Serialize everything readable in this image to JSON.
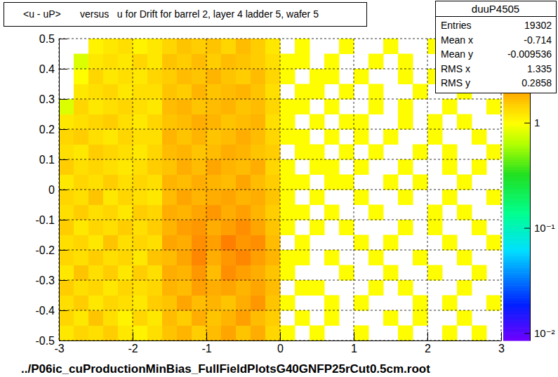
{
  "chart_data": {
    "type": "heatmap",
    "title": "<u - uP>       versus   u for Drift for barrel 2, layer 4 ladder 5, wafer 5",
    "annotations": [
      "../P06ic_cuProductionMinBias_FullFieldPlotsG40GNFP25rCut0.5cm.root"
    ],
    "stats": {
      "name": "duuP4505",
      "rows": [
        {
          "label": "Entries",
          "value": 19302
        },
        {
          "label": "Mean x",
          "value": -0.714
        },
        {
          "label": "Mean y",
          "value": -0.009536
        },
        {
          "label": "RMS x",
          "value": 1.335
        },
        {
          "label": "RMS y",
          "value": 0.2858
        }
      ]
    },
    "xlim": [
      -3,
      3
    ],
    "ylim": [
      -0.5,
      0.5
    ],
    "xticks": [
      -3,
      -2,
      -1,
      0,
      1,
      2,
      3
    ],
    "yticks": [
      -0.5,
      -0.4,
      -0.3,
      -0.2,
      -0.1,
      0,
      0.1,
      0.2,
      0.3,
      0.4,
      0.5
    ],
    "grid": true,
    "colorbar": {
      "range": [
        0.0085,
        6.3
      ],
      "log": true,
      "ticks": [
        {
          "value": 0.01,
          "label": "10⁻²"
        },
        {
          "value": 0.1,
          "label": "10⁻¹"
        },
        1
      ]
    },
    "x_bins": [
      -3,
      -2.8,
      -2.6,
      -2.4,
      -2.2,
      -2,
      -1.8,
      -1.6,
      -1.4,
      -1.2,
      -1,
      -0.8,
      -0.6,
      -0.4,
      -0.2,
      0,
      0.2,
      0.4,
      0.6,
      0.8,
      1,
      1.2,
      1.4,
      1.6,
      1.8,
      2,
      2.2,
      2.4,
      2.6,
      2.8,
      3
    ],
    "y_bins": [
      -0.5,
      -0.45,
      -0.4,
      -0.35,
      -0.3,
      -0.25,
      -0.2,
      -0.15,
      -0.1,
      -0.05,
      0,
      0.05,
      0.1,
      0.15,
      0.2,
      0.25,
      0.3,
      0.35,
      0.4,
      0.45,
      0.5
    ],
    "z": [
      [
        1.2,
        1.4,
        1.3,
        1.5,
        1.2,
        1.1,
        1.3,
        1.6,
        1.8,
        1.5,
        1.7,
        2.0,
        1.6,
        1.9,
        1.4,
        1,
        0,
        1,
        0,
        0,
        1,
        0,
        0,
        1,
        0,
        0,
        1,
        0,
        1,
        0
      ],
      [
        1.4,
        1.2,
        1.6,
        1.3,
        1.1,
        1.4,
        1.2,
        1.7,
        1.5,
        1.9,
        1.6,
        1.8,
        2.1,
        1.7,
        1.5,
        0,
        1,
        0,
        1,
        0,
        0,
        0,
        1,
        0,
        1,
        0,
        0,
        1,
        0,
        0
      ],
      [
        1.3,
        1.5,
        1.2,
        1.4,
        1.3,
        1.2,
        1.5,
        1.6,
        2.0,
        1.7,
        1.8,
        1.6,
        1.9,
        2.2,
        1.6,
        1,
        0,
        0,
        1,
        0,
        1,
        0,
        0,
        0,
        1,
        0,
        1,
        0,
        0,
        1
      ],
      [
        1.5,
        1.3,
        1.4,
        1.2,
        1.4,
        1.3,
        1.4,
        1.8,
        1.7,
        2.1,
        1.9,
        2.0,
        1.8,
        2.0,
        1.7,
        0,
        1,
        1,
        0,
        0,
        0,
        1,
        0,
        1,
        0,
        0,
        0,
        1,
        0,
        0
      ],
      [
        1.2,
        1.6,
        1.3,
        1.5,
        1.2,
        1.5,
        1.3,
        1.9,
        1.8,
        2.2,
        1.7,
        2.3,
        2.1,
        1.9,
        1.6,
        1,
        0,
        0,
        0,
        1,
        0,
        0,
        1,
        0,
        0,
        1,
        0,
        0,
        1,
        0
      ],
      [
        1.4,
        1.3,
        1.5,
        1.3,
        1.4,
        1.2,
        1.6,
        1.7,
        2.0,
        2.4,
        1.9,
        2.2,
        2.4,
        2.1,
        1.8,
        1,
        1,
        0,
        1,
        0,
        0,
        1,
        0,
        0,
        1,
        0,
        0,
        1,
        0,
        0
      ],
      [
        1.3,
        1.4,
        1.2,
        1.6,
        1.3,
        1.4,
        1.3,
        2.0,
        1.9,
        2.3,
        2.1,
        2.5,
        2.2,
        2.3,
        1.7,
        0,
        1,
        0,
        0,
        0,
        1,
        0,
        1,
        0,
        0,
        0,
        1,
        0,
        0,
        1
      ],
      [
        1.5,
        1.2,
        1.4,
        1.3,
        1.5,
        1.3,
        1.5,
        1.8,
        2.1,
        2.2,
        1.9,
        2.1,
        2.3,
        2.0,
        1.6,
        1,
        0,
        1,
        0,
        1,
        0,
        0,
        0,
        1,
        0,
        1,
        0,
        0,
        1,
        0
      ],
      [
        1.3,
        1.5,
        1.3,
        1.4,
        1.2,
        1.5,
        1.4,
        1.9,
        1.8,
        2.0,
        2.2,
        1.9,
        2.1,
        1.8,
        1.5,
        1,
        1,
        0,
        1,
        0,
        0,
        1,
        0,
        0,
        0,
        1,
        0,
        1,
        0,
        0
      ],
      [
        1.4,
        1.3,
        1.6,
        1.2,
        1.4,
        1.3,
        1.2,
        1.7,
        2.0,
        1.8,
        1.9,
        2.0,
        1.8,
        1.9,
        1.6,
        1,
        0,
        1,
        0,
        0,
        1,
        0,
        0,
        1,
        0,
        0,
        1,
        0,
        0,
        1
      ],
      [
        1.2,
        1.4,
        1.3,
        1.5,
        1.3,
        1.4,
        1.3,
        1.8,
        1.7,
        1.9,
        1.8,
        1.7,
        2.0,
        1.7,
        1.5,
        1,
        1,
        0,
        1,
        1,
        0,
        0,
        1,
        0,
        1,
        0,
        0,
        1,
        0,
        0
      ],
      [
        1.5,
        1.3,
        1.4,
        1.3,
        1.2,
        1.3,
        1.5,
        1.6,
        1.9,
        1.7,
        2.0,
        1.8,
        1.7,
        1.9,
        1.4,
        1,
        0,
        1,
        1,
        0,
        1,
        0,
        0,
        1,
        0,
        0,
        1,
        0,
        1,
        0
      ],
      [
        1.3,
        1.2,
        1.5,
        1.4,
        1.3,
        1.2,
        1.4,
        1.7,
        1.8,
        1.6,
        1.7,
        1.9,
        1.8,
        1.6,
        1.5,
        0,
        1,
        1,
        0,
        1,
        0,
        1,
        0,
        0,
        1,
        0,
        1,
        0,
        0,
        1
      ],
      [
        1.4,
        1.5,
        1.3,
        1.2,
        1.4,
        1.3,
        1.3,
        1.8,
        1.6,
        1.8,
        1.6,
        1.7,
        1.9,
        1.7,
        1.4,
        1,
        1,
        0,
        1,
        0,
        1,
        0,
        1,
        0,
        0,
        1,
        0,
        0,
        1,
        0
      ],
      [
        1.2,
        1.3,
        1.4,
        1.5,
        1.3,
        1.2,
        1.4,
        1.6,
        1.7,
        1.9,
        1.8,
        1.6,
        1.7,
        1.8,
        1.3,
        1,
        0,
        1,
        0,
        1,
        1,
        0,
        0,
        1,
        0,
        1,
        0,
        1,
        0,
        0
      ],
      [
        0.8,
        1.4,
        1.2,
        1.3,
        1.4,
        1.3,
        1.2,
        1.7,
        1.8,
        1.6,
        1.7,
        1.8,
        1.6,
        1.7,
        1.4,
        1,
        1,
        0,
        1,
        0,
        0,
        1,
        0,
        1,
        0,
        0,
        1,
        0,
        0,
        1
      ],
      [
        0,
        1.2,
        1.3,
        1.4,
        1.2,
        1.3,
        1.3,
        1.6,
        1.5,
        1.8,
        1.6,
        1.7,
        1.8,
        1.6,
        1.3,
        0,
        1,
        1,
        0,
        1,
        0,
        1,
        0,
        0,
        1,
        0,
        0,
        1,
        0,
        0
      ],
      [
        0,
        1.0,
        1.4,
        1.2,
        1.3,
        1.2,
        1.4,
        1.5,
        1.7,
        1.6,
        1.8,
        1.6,
        1.5,
        1.7,
        1.4,
        1,
        0,
        1,
        1,
        0,
        1,
        0,
        0,
        1,
        0,
        1,
        0,
        0,
        0,
        0
      ],
      [
        0,
        0.8,
        1.2,
        1.3,
        1.2,
        1.4,
        1.2,
        1.6,
        1.5,
        1.7,
        1.5,
        1.7,
        1.6,
        1.5,
        1.3,
        1,
        1,
        0,
        1,
        0,
        0,
        1,
        0,
        1,
        0,
        0,
        1,
        0,
        0,
        0
      ],
      [
        0,
        0,
        1.1,
        1.2,
        1.3,
        1.1,
        1.2,
        1.4,
        1.6,
        1.5,
        1.6,
        1.4,
        1.7,
        1.5,
        1.2,
        0,
        1,
        0,
        0,
        1,
        0,
        0,
        1,
        0,
        0,
        1,
        0,
        0,
        0,
        0
      ]
    ]
  }
}
